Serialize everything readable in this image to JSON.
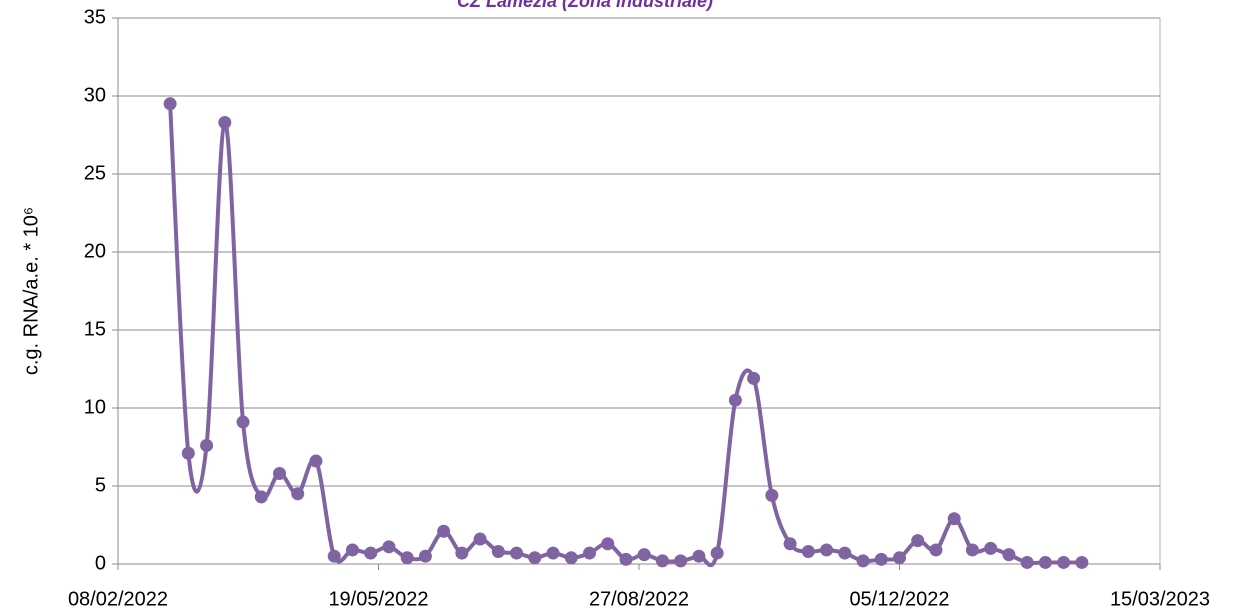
{
  "chart_data": {
    "type": "line",
    "title": "CZ  Lamezia  (Zona industriale)",
    "y_label": "c.g. RNA/a.e.  * 10⁶",
    "x": [
      "2022-02-28",
      "2022-03-07",
      "2022-03-14",
      "2022-03-21",
      "2022-03-28",
      "2022-04-04",
      "2022-04-11",
      "2022-04-18",
      "2022-04-25",
      "2022-05-02",
      "2022-05-09",
      "2022-05-16",
      "2022-05-23",
      "2022-05-30",
      "2022-06-06",
      "2022-06-13",
      "2022-06-20",
      "2022-06-27",
      "2022-07-04",
      "2022-07-11",
      "2022-07-18",
      "2022-07-25",
      "2022-08-01",
      "2022-08-08",
      "2022-08-15",
      "2022-08-22",
      "2022-08-29",
      "2022-09-05",
      "2022-09-12",
      "2022-09-19",
      "2022-09-26",
      "2022-10-03",
      "2022-10-10",
      "2022-10-17",
      "2022-10-24",
      "2022-10-31",
      "2022-11-07",
      "2022-11-14",
      "2022-11-21",
      "2022-11-28",
      "2022-12-05",
      "2022-12-12",
      "2022-12-19",
      "2022-12-26",
      "2023-01-02",
      "2023-01-09",
      "2023-01-16",
      "2023-01-23",
      "2023-01-30",
      "2023-02-06",
      "2023-02-13"
    ],
    "series": [
      {
        "color": "#8064a2",
        "values": [
          29.5,
          7.1,
          7.6,
          28.3,
          9.1,
          4.3,
          5.8,
          4.5,
          6.6,
          0.5,
          0.9,
          0.7,
          1.1,
          0.4,
          0.5,
          2.1,
          0.7,
          1.6,
          0.8,
          0.7,
          0.4,
          0.7,
          0.4,
          0.7,
          1.3,
          0.3,
          0.6,
          0.2,
          0.2,
          0.5,
          0.7,
          10.5,
          11.9,
          4.4,
          1.3,
          0.8,
          0.9,
          0.7,
          0.2,
          0.3,
          0.4,
          1.5,
          0.9,
          2.9,
          0.9,
          1.0,
          0.6,
          0.1,
          0.1,
          0.1,
          0.1
        ]
      }
    ],
    "xlim": [
      "2022-02-08",
      "2023-03-15"
    ],
    "xticks": [
      {
        "value": "2022-02-08",
        "label": "08/02/2022"
      },
      {
        "value": "2022-05-19",
        "label": "19/05/2022"
      },
      {
        "value": "2022-08-27",
        "label": "27/08/2022"
      },
      {
        "value": "2022-12-05",
        "label": "05/12/2022"
      },
      {
        "value": "2023-03-15",
        "label": "15/03/2023"
      }
    ],
    "ylim": [
      0,
      35
    ],
    "yticks": [
      0,
      5,
      10,
      15,
      20,
      25,
      30,
      35
    ],
    "grid": true
  }
}
